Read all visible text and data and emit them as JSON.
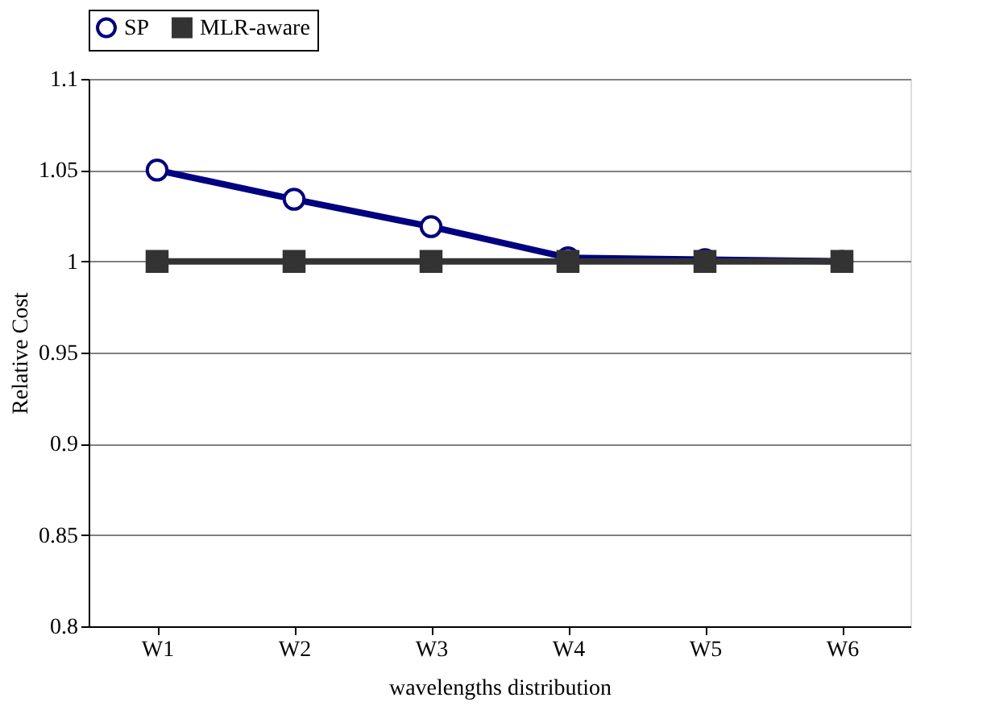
{
  "chart_data": {
    "type": "line",
    "xlabel": "wavelengths distribution",
    "ylabel": "Relative Cost",
    "categories": [
      "W1",
      "W2",
      "W3",
      "W4",
      "W5",
      "W6"
    ],
    "series": [
      {
        "name": "SP",
        "color": "#000080",
        "marker": "circle",
        "values": [
          1.05,
          1.034,
          1.019,
          1.002,
          1.001,
          1.0
        ]
      },
      {
        "name": "MLR-aware",
        "color": "#333333",
        "marker": "square",
        "values": [
          1.0,
          1.0,
          1.0,
          1.0,
          1.0,
          1.0
        ]
      }
    ],
    "ylim": [
      0.8,
      1.1
    ],
    "yticks": [
      0.8,
      0.85,
      0.9,
      0.95,
      1,
      1.05,
      1.1
    ],
    "grid": "y",
    "legend": "top"
  }
}
